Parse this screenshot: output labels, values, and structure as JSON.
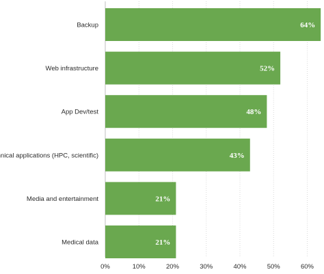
{
  "chart_data": {
    "type": "bar",
    "orientation": "horizontal",
    "categories": [
      "Backup",
      "Web infrastructure",
      "App Dev/test",
      "Technical applications (HPC, scientific)",
      "Media and entertainment",
      "Medical data"
    ],
    "values": [
      64,
      52,
      48,
      43,
      21,
      21
    ],
    "data_labels": [
      "64%",
      "52%",
      "48%",
      "43%",
      "21%",
      "21%"
    ],
    "x_ticks": [
      "0%",
      "10%",
      "20%",
      "30%",
      "40%",
      "50%",
      "60%"
    ],
    "xlim": [
      0,
      64
    ],
    "grid": true,
    "bar_color": "#6aa84f",
    "title": "",
    "xlabel": "",
    "ylabel": ""
  }
}
